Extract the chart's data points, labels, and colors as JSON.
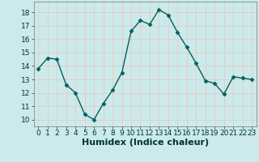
{
  "x": [
    0,
    1,
    2,
    3,
    4,
    5,
    6,
    7,
    8,
    9,
    10,
    11,
    12,
    13,
    14,
    15,
    16,
    17,
    18,
    19,
    20,
    21,
    22,
    23
  ],
  "y": [
    13.8,
    14.6,
    14.5,
    12.6,
    12.0,
    10.4,
    10.0,
    11.2,
    12.2,
    13.5,
    16.6,
    17.4,
    17.1,
    18.2,
    17.8,
    16.5,
    15.4,
    14.2,
    12.9,
    12.7,
    11.9,
    13.2,
    13.1,
    13.0
  ],
  "line_color": "#006060",
  "marker": "D",
  "marker_size": 2.5,
  "bg_color": "#cceaea",
  "grid_color": "#e8c8c8",
  "xlabel": "Humidex (Indice chaleur)",
  "ylim": [
    9.5,
    18.8
  ],
  "xlim": [
    -0.5,
    23.5
  ],
  "yticks": [
    10,
    11,
    12,
    13,
    14,
    15,
    16,
    17,
    18
  ],
  "xticks": [
    0,
    1,
    2,
    3,
    4,
    5,
    6,
    7,
    8,
    9,
    10,
    11,
    12,
    13,
    14,
    15,
    16,
    17,
    18,
    19,
    20,
    21,
    22,
    23
  ],
  "tick_fontsize": 6.5,
  "xlabel_fontsize": 8
}
